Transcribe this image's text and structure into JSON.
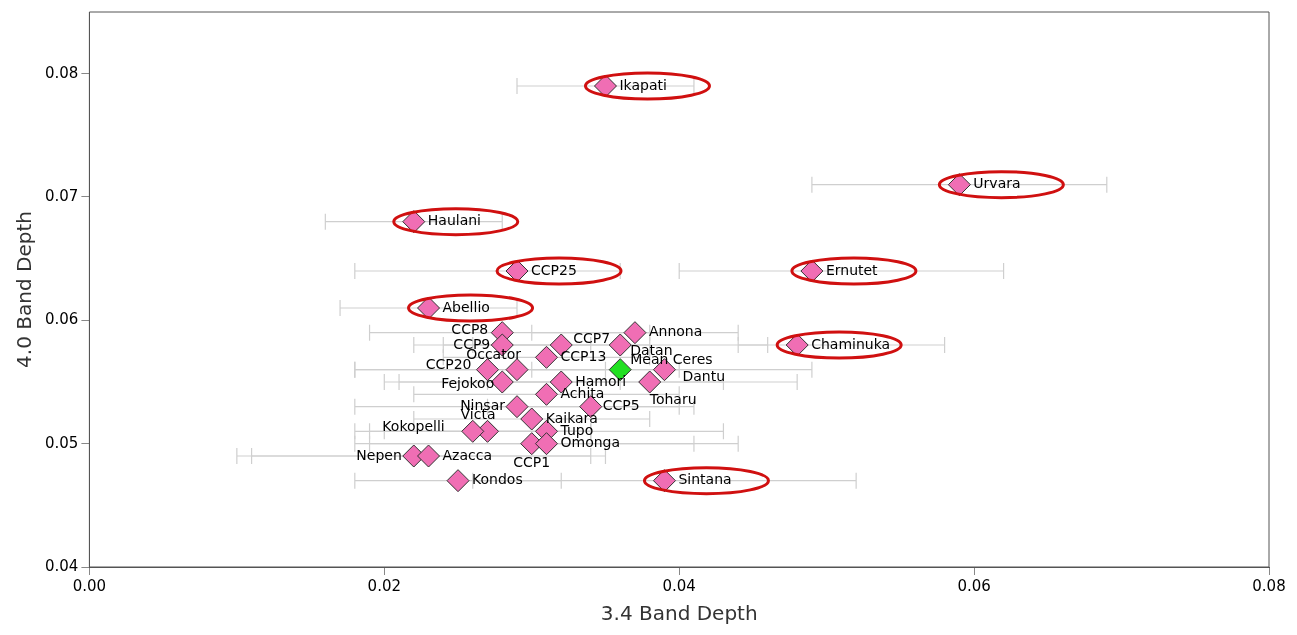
{
  "chart_data": {
    "type": "scatter",
    "xlabel": "3.4 Band Depth",
    "ylabel": "4.0 Band Depth",
    "xlim": [
      0,
      0.08
    ],
    "ylim": [
      0.04,
      0.085
    ],
    "xticks": [
      {
        "value": 0,
        "label": "0.00"
      },
      {
        "value": 0.02,
        "label": "0.02"
      },
      {
        "value": 0.04,
        "label": "0.04"
      },
      {
        "value": 0.06,
        "label": "0.06"
      },
      {
        "value": 0.08,
        "label": "0.08"
      }
    ],
    "yticks": [
      {
        "value": 0.04,
        "label": "0.04"
      },
      {
        "value": 0.05,
        "label": "0.05"
      },
      {
        "value": 0.06,
        "label": "0.06"
      },
      {
        "value": 0.07,
        "label": "0.07"
      },
      {
        "value": 0.08,
        "label": "0.08"
      }
    ],
    "marker": "diamond",
    "grid": false,
    "legend": false,
    "series": [
      {
        "color": "#f06eb4",
        "x": [
          0.035,
          0.059,
          0.022,
          0.029,
          0.049,
          0.023,
          0.048,
          0.039
        ],
        "values": [
          0.079,
          0.071,
          0.068,
          0.064,
          0.064,
          0.061,
          0.058,
          0.047
        ],
        "xerrors": [
          [
            0.029,
            0.041
          ],
          [
            0.049,
            0.069
          ],
          [
            0.016,
            0.028
          ],
          [
            0.018,
            0.036
          ],
          [
            0.04,
            0.062
          ],
          [
            0.017,
            0.029
          ],
          [
            0.044,
            0.058
          ],
          [
            0.026,
            0.052
          ]
        ]
      },
      {
        "color": "#f06eb4",
        "x": [
          0.028,
          0.028,
          0.032,
          0.037,
          0.036,
          0.031,
          0.029,
          0.027,
          0.039,
          0.032,
          0.028,
          0.038,
          0.031,
          0.034,
          0.029,
          0.03,
          0.031,
          0.027,
          0.026,
          0.03,
          0.031,
          0.022,
          0.023,
          0.025
        ],
        "values": [
          0.059,
          0.058,
          0.058,
          0.059,
          0.058,
          0.057,
          0.056,
          0.056,
          0.056,
          0.055,
          0.055,
          0.055,
          0.054,
          0.053,
          0.053,
          0.052,
          0.051,
          0.051,
          0.051,
          0.05,
          0.05,
          0.049,
          0.049,
          0.047
        ],
        "xerrors": [
          [
            0.019,
            0.038
          ],
          [
            0.022,
            0.034
          ],
          [
            0.026,
            0.038
          ],
          [
            0.03,
            0.044
          ],
          [
            0.024,
            0.046
          ],
          [
            0.024,
            0.038
          ],
          [
            0.018,
            0.04
          ],
          [
            0.018,
            0.035
          ],
          [
            0.03,
            0.049
          ],
          [
            0.021,
            0.043
          ],
          [
            0.02,
            0.036
          ],
          [
            0.027,
            0.048
          ],
          [
            0.022,
            0.04
          ],
          [
            0.027,
            0.041
          ],
          [
            0.018,
            0.04
          ],
          [
            0.022,
            0.038
          ],
          [
            0.019,
            0.043
          ],
          [
            0.02,
            0.034
          ],
          [
            0.018,
            0.034
          ],
          [
            0.019,
            0.041
          ],
          [
            0.018,
            0.044
          ],
          [
            0.01,
            0.034
          ],
          [
            0.011,
            0.035
          ],
          [
            0.018,
            0.032
          ]
        ]
      },
      {
        "color": "#22e022",
        "x": [
          0.036
        ],
        "values": [
          0.056
        ]
      }
    ],
    "annotations": [
      {
        "text": "Ikapati",
        "x": 0.035,
        "y": 0.079
      },
      {
        "text": "Urvara",
        "x": 0.059,
        "y": 0.071
      },
      {
        "text": "Haulani",
        "x": 0.022,
        "y": 0.068
      },
      {
        "text": "CCP25",
        "x": 0.029,
        "y": 0.064
      },
      {
        "text": "Ernutet",
        "x": 0.049,
        "y": 0.064
      },
      {
        "text": "Abellio",
        "x": 0.023,
        "y": 0.061
      },
      {
        "text": "Chaminuka",
        "x": 0.048,
        "y": 0.058
      },
      {
        "text": "Sintana",
        "x": 0.039,
        "y": 0.047
      },
      {
        "text": "CCP8",
        "x": 0.028,
        "y": 0.059
      },
      {
        "text": "CCP9",
        "x": 0.028,
        "y": 0.058
      },
      {
        "text": "CCP7",
        "x": 0.032,
        "y": 0.058
      },
      {
        "text": "Annona",
        "x": 0.037,
        "y": 0.059
      },
      {
        "text": "Datan",
        "x": 0.036,
        "y": 0.058
      },
      {
        "text": "CCP13",
        "x": 0.031,
        "y": 0.057
      },
      {
        "text": "Occator",
        "x": 0.029,
        "y": 0.056
      },
      {
        "text": "CCP20",
        "x": 0.027,
        "y": 0.056
      },
      {
        "text": "Mean Ceres",
        "x": 0.036,
        "y": 0.056
      },
      {
        "text": "Dantu",
        "x": 0.039,
        "y": 0.056
      },
      {
        "text": "Hamori",
        "x": 0.032,
        "y": 0.055
      },
      {
        "text": "Fejokoo",
        "x": 0.028,
        "y": 0.055
      },
      {
        "text": "Toharu",
        "x": 0.038,
        "y": 0.055
      },
      {
        "text": "Achita",
        "x": 0.031,
        "y": 0.054
      },
      {
        "text": "CCP5",
        "x": 0.034,
        "y": 0.053
      },
      {
        "text": "Ninsar",
        "x": 0.029,
        "y": 0.053
      },
      {
        "text": "Kaikara",
        "x": 0.03,
        "y": 0.052
      },
      {
        "text": "Tupo",
        "x": 0.031,
        "y": 0.051
      },
      {
        "text": "Victa",
        "x": 0.027,
        "y": 0.051
      },
      {
        "text": "Kokopelli",
        "x": 0.026,
        "y": 0.051
      },
      {
        "text": "CCP1",
        "x": 0.03,
        "y": 0.05
      },
      {
        "text": "Omonga",
        "x": 0.031,
        "y": 0.05
      },
      {
        "text": "Nepen",
        "x": 0.022,
        "y": 0.049
      },
      {
        "text": "Azacca",
        "x": 0.023,
        "y": 0.049
      },
      {
        "text": "Kondos",
        "x": 0.025,
        "y": 0.047
      }
    ]
  }
}
